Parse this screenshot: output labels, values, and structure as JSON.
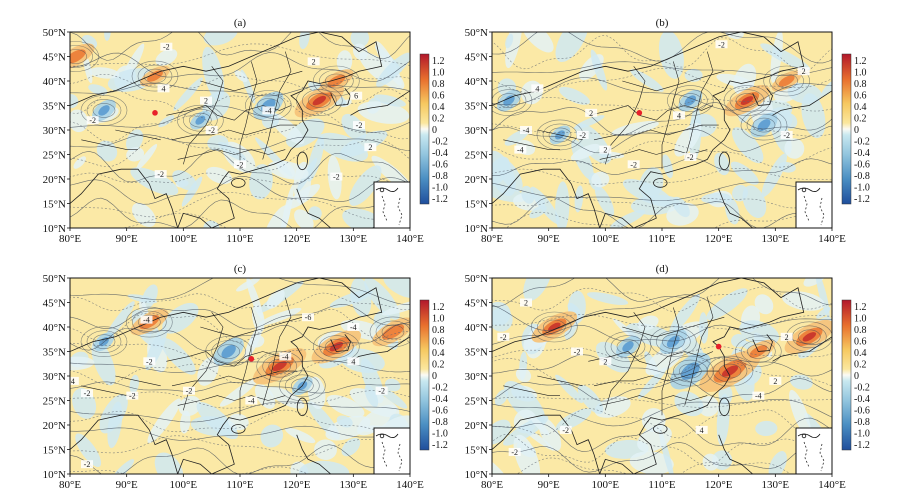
{
  "chart_data": [
    {
      "type": "heatmap",
      "panel_label": "(a)",
      "x_ticks": [
        "80°E",
        "90°E",
        "100°E",
        "110°E",
        "120°E",
        "130°E",
        "140°E"
      ],
      "y_ticks": [
        "50°N",
        "45°N",
        "40°N",
        "35°N",
        "30°N",
        "25°N",
        "20°N",
        "15°N",
        "10°N"
      ],
      "xlim": [
        80,
        140
      ],
      "ylim": [
        10,
        50
      ],
      "colorbar_ticks": [
        "1.2",
        "1.0",
        "0.8",
        "0.6",
        "0.4",
        "0.2",
        "0",
        "-0.2",
        "-0.4",
        "-0.6",
        "-0.8",
        "-1.0",
        "-1.2"
      ],
      "contour_labels": [
        {
          "text": "-2",
          "lon": 97,
          "lat": 47
        },
        {
          "text": "4",
          "lon": 96.5,
          "lat": 38.5
        },
        {
          "text": "2",
          "lon": 104,
          "lat": 36
        },
        {
          "text": "-2",
          "lon": 84,
          "lat": 32
        },
        {
          "text": "-2",
          "lon": 105,
          "lat": 30
        },
        {
          "text": "-2",
          "lon": 96,
          "lat": 21
        },
        {
          "text": "-2",
          "lon": 110,
          "lat": 23
        },
        {
          "text": "2",
          "lon": 123,
          "lat": 44
        },
        {
          "text": "6",
          "lon": 130.5,
          "lat": 37
        },
        {
          "text": "-2",
          "lon": 131,
          "lat": 31
        },
        {
          "text": "-2",
          "lon": 127,
          "lat": 20.5
        },
        {
          "text": "-4",
          "lon": 115,
          "lat": 34
        },
        {
          "text": "2",
          "lon": 133,
          "lat": 26.5
        }
      ],
      "station": {
        "lon": 95,
        "lat": 33.5
      },
      "positive_cores": [
        {
          "lon": 124,
          "lat": 36,
          "value": 0.9
        },
        {
          "lon": 81,
          "lat": 45,
          "value": 0.6
        },
        {
          "lon": 95,
          "lat": 41,
          "value": 0.4
        },
        {
          "lon": 127,
          "lat": 40,
          "value": 0.5
        }
      ],
      "negative_cores": [
        {
          "lon": 115,
          "lat": 35,
          "value": -0.6
        },
        {
          "lon": 103,
          "lat": 32,
          "value": -0.3
        },
        {
          "lon": 86,
          "lat": 34,
          "value": -0.4
        }
      ]
    },
    {
      "type": "heatmap",
      "panel_label": "(b)",
      "x_ticks": [
        "80°E",
        "90°E",
        "100°E",
        "110°E",
        "120°E",
        "130°E",
        "140°E"
      ],
      "y_ticks": [
        "50°N",
        "45°N",
        "40°N",
        "35°N",
        "30°N",
        "25°N",
        "20°N",
        "15°N",
        "10°N"
      ],
      "xlim": [
        80,
        140
      ],
      "ylim": [
        10,
        50
      ],
      "colorbar_ticks": [
        "1.2",
        "1.0",
        "0.8",
        "0.6",
        "0.4",
        "0.2",
        "0",
        "-0.2",
        "-0.4",
        "-0.6",
        "-0.8",
        "-1.0",
        "-1.2"
      ],
      "contour_labels": [
        {
          "text": "-2",
          "lon": 120.5,
          "lat": 47.5
        },
        {
          "text": "4",
          "lon": 88,
          "lat": 38.5
        },
        {
          "text": "-4",
          "lon": 86,
          "lat": 30
        },
        {
          "text": "-4",
          "lon": 85,
          "lat": 26
        },
        {
          "text": "2",
          "lon": 97.5,
          "lat": 33.5
        },
        {
          "text": "4",
          "lon": 113,
          "lat": 33
        },
        {
          "text": "-2",
          "lon": 96,
          "lat": 29
        },
        {
          "text": "2",
          "lon": 100,
          "lat": 26
        },
        {
          "text": "-2",
          "lon": 105,
          "lat": 23
        },
        {
          "text": "-2",
          "lon": 115,
          "lat": 24.5
        },
        {
          "text": "2",
          "lon": 135,
          "lat": 42
        },
        {
          "text": "-2",
          "lon": 132,
          "lat": 29
        }
      ],
      "station": {
        "lon": 106,
        "lat": 33.5
      },
      "positive_cores": [
        {
          "lon": 125,
          "lat": 36,
          "value": 0.8
        },
        {
          "lon": 132,
          "lat": 40,
          "value": 0.4
        }
      ],
      "negative_cores": [
        {
          "lon": 83,
          "lat": 36,
          "value": -0.4
        },
        {
          "lon": 115,
          "lat": 36,
          "value": -0.4
        },
        {
          "lon": 128,
          "lat": 31,
          "value": -0.5
        },
        {
          "lon": 92,
          "lat": 29,
          "value": -0.3
        }
      ]
    },
    {
      "type": "heatmap",
      "panel_label": "(c)",
      "x_ticks": [
        "80°E",
        "90°E",
        "100°E",
        "110°E",
        "120°E",
        "130°E",
        "140°E"
      ],
      "y_ticks": [
        "50°N",
        "45°N",
        "40°N",
        "35°N",
        "30°N",
        "25°N",
        "20°N",
        "15°N",
        "10°N"
      ],
      "xlim": [
        80,
        140
      ],
      "ylim": [
        10,
        50
      ],
      "colorbar_ticks": [
        "1.2",
        "1.0",
        "0.8",
        "0.6",
        "0.4",
        "0.2",
        "0",
        "-0.2",
        "-0.4",
        "-0.6",
        "-0.8",
        "-1.0",
        "-1.2"
      ],
      "contour_labels": [
        {
          "text": "-4",
          "lon": 93.5,
          "lat": 41.5
        },
        {
          "text": "-6",
          "lon": 122,
          "lat": 42
        },
        {
          "text": "-4",
          "lon": 130,
          "lat": 40
        },
        {
          "text": "-4",
          "lon": 118,
          "lat": 34
        },
        {
          "text": "-2",
          "lon": 94,
          "lat": 33
        },
        {
          "text": "4",
          "lon": 80.5,
          "lat": 29
        },
        {
          "text": "-2",
          "lon": 83,
          "lat": 26.5
        },
        {
          "text": "-2",
          "lon": 91,
          "lat": 26
        },
        {
          "text": "-2",
          "lon": 101,
          "lat": 27
        },
        {
          "text": "-4",
          "lon": 112,
          "lat": 25
        },
        {
          "text": "-2",
          "lon": 135,
          "lat": 27
        },
        {
          "text": "-2",
          "lon": 83,
          "lat": 12
        },
        {
          "text": "4",
          "lon": 130,
          "lat": 33
        }
      ],
      "station": {
        "lon": 112,
        "lat": 33.5
      },
      "positive_cores": [
        {
          "lon": 117,
          "lat": 32,
          "value": 1.0
        },
        {
          "lon": 127,
          "lat": 36,
          "value": 0.9
        },
        {
          "lon": 94,
          "lat": 41,
          "value": 0.6
        },
        {
          "lon": 137,
          "lat": 39,
          "value": 0.7
        }
      ],
      "negative_cores": [
        {
          "lon": 108,
          "lat": 35,
          "value": -0.6
        },
        {
          "lon": 121,
          "lat": 28,
          "value": -0.3
        },
        {
          "lon": 86,
          "lat": 37,
          "value": -0.3
        }
      ]
    },
    {
      "type": "heatmap",
      "panel_label": "(d)",
      "x_ticks": [
        "80°E",
        "90°E",
        "100°E",
        "110°E",
        "120°E",
        "130°E",
        "140°E"
      ],
      "y_ticks": [
        "50°N",
        "45°N",
        "40°N",
        "35°N",
        "30°N",
        "25°N",
        "20°N",
        "15°N",
        "10°N"
      ],
      "xlim": [
        80,
        140
      ],
      "ylim": [
        10,
        50
      ],
      "colorbar_ticks": [
        "1.2",
        "1.0",
        "0.8",
        "0.6",
        "0.4",
        "0.2",
        "0",
        "-0.2",
        "-0.4",
        "-0.6",
        "-0.8",
        "-1.0",
        "-1.2"
      ],
      "contour_labels": [
        {
          "text": "2",
          "lon": 86,
          "lat": 45
        },
        {
          "text": "-2",
          "lon": 82,
          "lat": 38
        },
        {
          "text": "-2",
          "lon": 95,
          "lat": 35
        },
        {
          "text": "2",
          "lon": 100,
          "lat": 33
        },
        {
          "text": "2",
          "lon": 130,
          "lat": 29
        },
        {
          "text": "-4",
          "lon": 127,
          "lat": 26
        },
        {
          "text": "-2",
          "lon": 93,
          "lat": 19
        },
        {
          "text": "-2",
          "lon": 84,
          "lat": 14.5
        },
        {
          "text": "4",
          "lon": 117,
          "lat": 19
        },
        {
          "text": "2",
          "lon": 132,
          "lat": 38
        }
      ],
      "station": {
        "lon": 120,
        "lat": 36
      },
      "positive_cores": [
        {
          "lon": 122,
          "lat": 31,
          "value": 1.2
        },
        {
          "lon": 91,
          "lat": 40,
          "value": 0.8
        },
        {
          "lon": 136,
          "lat": 38,
          "value": 0.9
        },
        {
          "lon": 127,
          "lat": 35,
          "value": 0.5
        }
      ],
      "negative_cores": [
        {
          "lon": 115,
          "lat": 31,
          "value": -0.9
        },
        {
          "lon": 112,
          "lat": 37,
          "value": -0.5
        },
        {
          "lon": 104,
          "lat": 36,
          "value": -0.4
        }
      ]
    }
  ]
}
